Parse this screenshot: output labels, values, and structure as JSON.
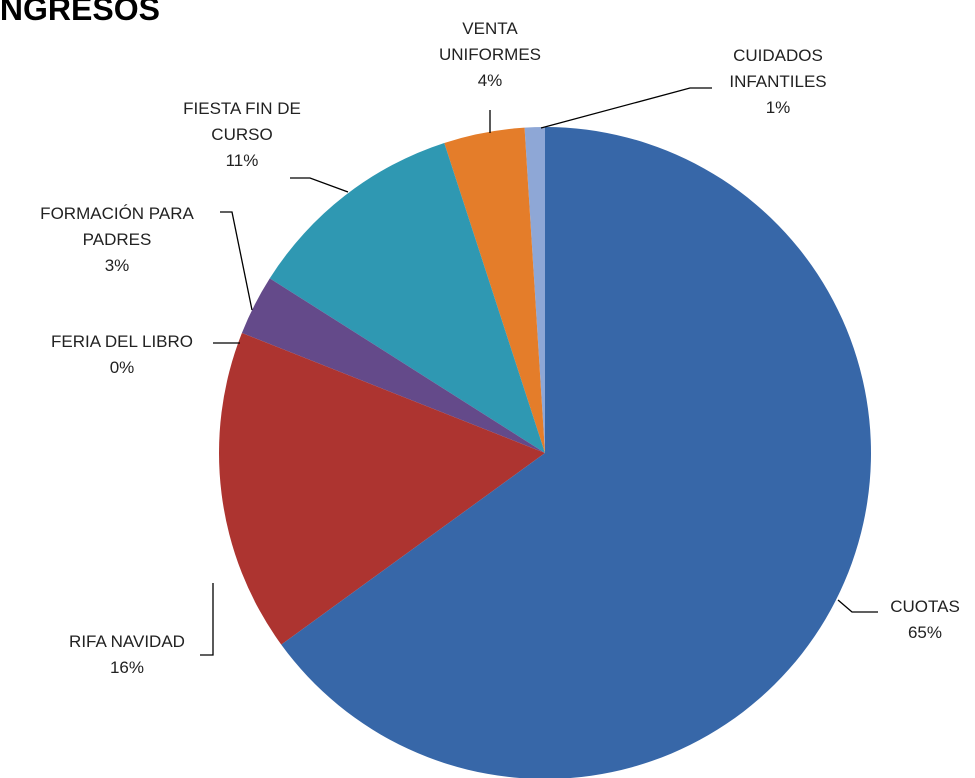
{
  "chart_data": {
    "type": "pie",
    "title": "INGRESOS",
    "categories": [
      "CUOTAS",
      "RIFA NAVIDAD",
      "FERIA DEL LIBRO",
      "FORMACIÓN PARA\nPADRES",
      "FIESTA FIN DE\nCURSO",
      "VENTA\nUNIFORMES",
      "CUIDADOS\nINFANTILES"
    ],
    "values": [
      65,
      16,
      0,
      3,
      11,
      4,
      1
    ],
    "value_labels": [
      "65%",
      "16%",
      "0%",
      "3%",
      "11%",
      "4%",
      "1%"
    ],
    "colors": [
      "#3767a8",
      "#ad3430",
      "#7faf3f",
      "#644a8a",
      "#2f98b2",
      "#e47d2a",
      "#8ea7d6"
    ]
  }
}
